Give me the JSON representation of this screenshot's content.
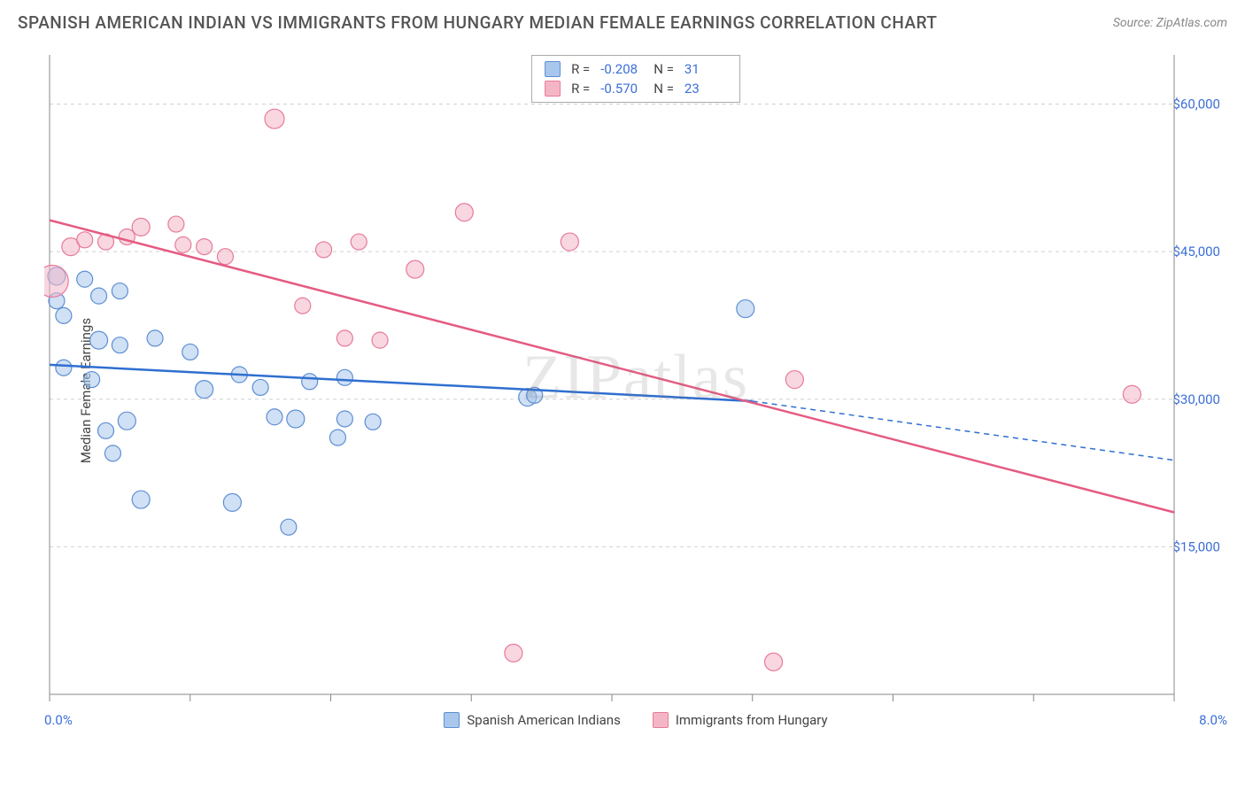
{
  "header": {
    "title": "SPANISH AMERICAN INDIAN VS IMMIGRANTS FROM HUNGARY MEDIAN FEMALE EARNINGS CORRELATION CHART",
    "source": "Source: ZipAtlas.com"
  },
  "chart": {
    "watermark": "ZIPatlas",
    "y_axis_label": "Median Female Earnings",
    "x_range": [
      0,
      8
    ],
    "y_range": [
      0,
      65000
    ],
    "x_ticks": [
      0,
      1,
      2,
      3,
      4,
      5,
      6,
      7,
      8
    ],
    "x_tick_labels": {
      "0": "0.0%",
      "8": "8.0%"
    },
    "y_grid": [
      15000,
      30000,
      45000,
      60000
    ],
    "y_tick_labels": [
      "$15,000",
      "$30,000",
      "$45,000",
      "$60,000"
    ],
    "grid_color": "#d0d0d0",
    "axis_color": "#888",
    "series": [
      {
        "id": "sai",
        "label": "Spanish American Indians",
        "fill": "#a9c7ec",
        "fill_opacity": 0.55,
        "stroke": "#5d8fd3",
        "line_color": "#2f6fd0",
        "R": "-0.208",
        "N": "31",
        "trend": {
          "x1": 0.0,
          "y1": 33500,
          "x2": 5.0,
          "y2": 29800,
          "dash_x2": 8.0,
          "dash_y2": 23800
        },
        "points": [
          {
            "x": 0.05,
            "y": 42500,
            "r": 10
          },
          {
            "x": 0.05,
            "y": 40000,
            "r": 9
          },
          {
            "x": 0.1,
            "y": 38500,
            "r": 9
          },
          {
            "x": 0.25,
            "y": 42200,
            "r": 9
          },
          {
            "x": 0.35,
            "y": 40500,
            "r": 9
          },
          {
            "x": 0.5,
            "y": 41000,
            "r": 9
          },
          {
            "x": 0.35,
            "y": 36000,
            "r": 10
          },
          {
            "x": 0.5,
            "y": 35500,
            "r": 9
          },
          {
            "x": 0.75,
            "y": 36200,
            "r": 9
          },
          {
            "x": 0.1,
            "y": 33200,
            "r": 9
          },
          {
            "x": 0.55,
            "y": 27800,
            "r": 10
          },
          {
            "x": 0.4,
            "y": 26800,
            "r": 9
          },
          {
            "x": 0.45,
            "y": 24500,
            "r": 9
          },
          {
            "x": 0.65,
            "y": 19800,
            "r": 10
          },
          {
            "x": 1.0,
            "y": 34800,
            "r": 9
          },
          {
            "x": 1.1,
            "y": 31000,
            "r": 10
          },
          {
            "x": 1.35,
            "y": 32500,
            "r": 9
          },
          {
            "x": 1.5,
            "y": 31200,
            "r": 9
          },
          {
            "x": 1.3,
            "y": 19500,
            "r": 10
          },
          {
            "x": 1.85,
            "y": 31800,
            "r": 9
          },
          {
            "x": 1.75,
            "y": 28000,
            "r": 10
          },
          {
            "x": 1.7,
            "y": 17000,
            "r": 9
          },
          {
            "x": 1.6,
            "y": 28200,
            "r": 9
          },
          {
            "x": 2.05,
            "y": 26100,
            "r": 9
          },
          {
            "x": 2.1,
            "y": 32200,
            "r": 9
          },
          {
            "x": 2.3,
            "y": 27700,
            "r": 9
          },
          {
            "x": 2.1,
            "y": 28000,
            "r": 9
          },
          {
            "x": 3.4,
            "y": 30200,
            "r": 10
          },
          {
            "x": 3.45,
            "y": 30400,
            "r": 9
          },
          {
            "x": 4.95,
            "y": 39200,
            "r": 10
          },
          {
            "x": 0.3,
            "y": 32000,
            "r": 9
          }
        ]
      },
      {
        "id": "hun",
        "label": "Immigrants from Hungary",
        "fill": "#f4b6c6",
        "fill_opacity": 0.55,
        "stroke": "#e77a9a",
        "line_color": "#e55b82",
        "R": "-0.570",
        "N": "23",
        "trend": {
          "x1": 0.0,
          "y1": 48200,
          "x2": 8.0,
          "y2": 18500
        },
        "points": [
          {
            "x": 0.02,
            "y": 42000,
            "r": 18
          },
          {
            "x": 0.15,
            "y": 45500,
            "r": 10
          },
          {
            "x": 0.25,
            "y": 46200,
            "r": 9
          },
          {
            "x": 0.4,
            "y": 46000,
            "r": 9
          },
          {
            "x": 0.55,
            "y": 46500,
            "r": 9
          },
          {
            "x": 0.65,
            "y": 47500,
            "r": 10
          },
          {
            "x": 0.9,
            "y": 47800,
            "r": 9
          },
          {
            "x": 0.95,
            "y": 45700,
            "r": 9
          },
          {
            "x": 1.1,
            "y": 45500,
            "r": 9
          },
          {
            "x": 1.25,
            "y": 44500,
            "r": 9
          },
          {
            "x": 1.6,
            "y": 58500,
            "r": 11
          },
          {
            "x": 1.8,
            "y": 39500,
            "r": 9
          },
          {
            "x": 1.95,
            "y": 45200,
            "r": 9
          },
          {
            "x": 2.2,
            "y": 46000,
            "r": 9
          },
          {
            "x": 2.1,
            "y": 36200,
            "r": 9
          },
          {
            "x": 2.35,
            "y": 36000,
            "r": 9
          },
          {
            "x": 2.6,
            "y": 43200,
            "r": 10
          },
          {
            "x": 2.95,
            "y": 49000,
            "r": 10
          },
          {
            "x": 3.7,
            "y": 46000,
            "r": 10
          },
          {
            "x": 3.3,
            "y": 4200,
            "r": 10
          },
          {
            "x": 5.15,
            "y": 3300,
            "r": 10
          },
          {
            "x": 5.3,
            "y": 32000,
            "r": 10
          },
          {
            "x": 7.7,
            "y": 30500,
            "r": 10
          }
        ]
      }
    ]
  }
}
